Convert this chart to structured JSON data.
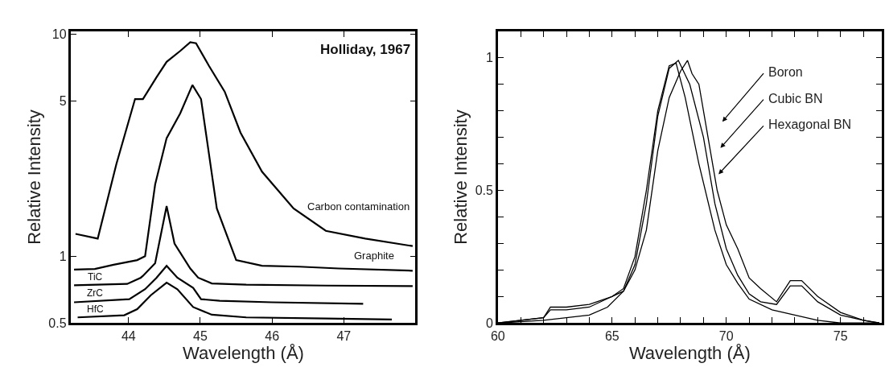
{
  "chart_data": [
    {
      "type": "line",
      "xlabel": "Wavelength (Å)",
      "ylabel": "Relative Intensity",
      "log": true,
      "xlim": [
        43.2,
        48.0
      ],
      "xticks": [
        44,
        45,
        46,
        47
      ],
      "ylim": [
        0.5,
        10.3
      ],
      "yticks": [
        0.5,
        1,
        5,
        10
      ],
      "annotations": [
        "Holliday, 1967",
        "Carbon contamination",
        "Graphite",
        "TiC",
        "ZrC",
        "HfC"
      ],
      "series": [
        {
          "color": "#000000",
          "x": [
            43.26,
            43.57,
            43.83,
            44.09,
            44.2,
            44.39,
            44.53,
            44.72,
            44.86,
            44.94,
            45.12,
            45.34,
            45.56,
            45.86,
            46.3,
            46.75,
            47.3,
            47.96
          ],
          "values": [
            1.26,
            1.2,
            2.6,
            5.1,
            5.1,
            6.4,
            7.5,
            8.4,
            9.2,
            9.1,
            7.2,
            5.5,
            3.6,
            2.4,
            1.64,
            1.3,
            1.2,
            1.11
          ]
        },
        {
          "color": "#000000",
          "x": [
            43.24,
            43.53,
            43.79,
            44.12,
            44.23,
            44.37,
            44.53,
            44.72,
            44.89,
            45.01,
            45.23,
            45.5,
            45.86,
            46.38,
            46.93,
            47.96
          ],
          "values": [
            0.87,
            0.876,
            0.915,
            0.96,
            1.0,
            2.1,
            3.4,
            4.4,
            5.9,
            5.1,
            1.64,
            0.96,
            0.905,
            0.897,
            0.88,
            0.86
          ]
        },
        {
          "color": "#000000",
          "x": [
            43.24,
            43.98,
            44.17,
            44.2,
            44.37,
            44.53,
            44.64,
            44.86,
            44.97,
            45.16,
            45.64,
            46.75,
            47.96
          ],
          "values": [
            0.74,
            0.75,
            0.8,
            0.815,
            0.93,
            1.68,
            1.14,
            0.88,
            0.8,
            0.754,
            0.744,
            0.737,
            0.733
          ]
        },
        {
          "color": "#000000",
          "x": [
            43.24,
            44.01,
            44.23,
            44.39,
            44.53,
            44.68,
            44.9,
            45.01,
            45.27,
            46.0,
            47.27
          ],
          "values": [
            0.62,
            0.64,
            0.71,
            0.8,
            0.905,
            0.8,
            0.72,
            0.64,
            0.63,
            0.62,
            0.61
          ]
        },
        {
          "color": "#000000",
          "x": [
            43.29,
            43.94,
            44.12,
            44.31,
            44.53,
            44.68,
            44.9,
            45.16,
            45.64,
            46.75,
            47.67
          ],
          "values": [
            0.53,
            0.542,
            0.577,
            0.667,
            0.76,
            0.71,
            0.59,
            0.545,
            0.53,
            0.524,
            0.519
          ]
        }
      ]
    },
    {
      "type": "line",
      "xlabel": "Wavelength (Å)",
      "ylabel": "Relative Intensity",
      "xlim": [
        60,
        76.8
      ],
      "xticks": [
        60,
        {
          "value": 61,
          "label": null
        },
        {
          "value": 62,
          "label": null
        },
        {
          "value": 63,
          "label": null
        },
        {
          "value": 64,
          "label": null
        },
        65,
        {
          "value": 66,
          "label": null
        },
        {
          "value": 67,
          "label": null
        },
        {
          "value": 68,
          "label": null
        },
        {
          "value": 69,
          "label": null
        },
        70,
        {
          "value": 71,
          "label": null
        },
        {
          "value": 72,
          "label": null
        },
        {
          "value": 73,
          "label": null
        },
        {
          "value": 74,
          "label": null
        },
        75,
        {
          "value": 76,
          "label": null
        }
      ],
      "ylim": [
        0,
        1.1
      ],
      "annotations": [
        "Boron",
        "Cubic BN",
        "Hexagonal BN"
      ],
      "yticks": [
        0,
        {
          "value": 0.1,
          "label": null
        },
        {
          "value": 0.2,
          "label": null
        },
        {
          "value": 0.3,
          "label": null
        },
        {
          "value": 0.4,
          "label": null
        },
        0.5,
        {
          "value": 0.6,
          "label": null
        },
        {
          "value": 0.7,
          "label": null
        },
        {
          "value": 0.8,
          "label": null
        },
        {
          "value": 0.9,
          "label": null
        },
        1
      ],
      "series": [
        {
          "color": "#000000",
          "x": [
            60,
            61,
            62,
            62.3,
            63,
            64,
            65,
            65.5,
            66,
            66.5,
            67,
            67.5,
            68,
            68.3,
            68.5,
            68.8,
            69.2,
            69.6,
            70,
            70.5,
            71,
            71.5,
            72.2,
            72.8,
            73.3,
            74,
            75,
            76,
            76.7
          ],
          "values": [
            0,
            0.01,
            0.02,
            0.06,
            0.06,
            0.07,
            0.1,
            0.12,
            0.2,
            0.35,
            0.65,
            0.85,
            0.95,
            0.99,
            0.94,
            0.9,
            0.7,
            0.5,
            0.37,
            0.28,
            0.17,
            0.13,
            0.08,
            0.16,
            0.16,
            0.1,
            0.04,
            0.01,
            0
          ]
        },
        {
          "color": "#000000",
          "x": [
            60,
            62,
            63,
            64,
            64.8,
            65.5,
            66,
            66.5,
            67,
            67.5,
            67.9,
            68.4,
            69,
            69.5,
            70,
            70.5,
            71,
            71.5,
            72.2,
            72.8,
            73.3,
            74,
            75,
            76,
            76.7
          ],
          "values": [
            0,
            0.01,
            0.02,
            0.03,
            0.06,
            0.12,
            0.22,
            0.45,
            0.78,
            0.96,
            0.99,
            0.9,
            0.7,
            0.45,
            0.28,
            0.18,
            0.11,
            0.08,
            0.07,
            0.14,
            0.14,
            0.08,
            0.03,
            0.01,
            0
          ]
        },
        {
          "color": "#000000",
          "x": [
            60,
            61,
            62,
            62.3,
            63,
            64,
            65,
            65.5,
            66,
            66.5,
            67,
            67.5,
            67.8,
            68.2,
            68.8,
            69.5,
            70,
            70.5,
            71,
            72,
            73,
            74,
            75,
            76.7
          ],
          "values": [
            0,
            0.01,
            0.02,
            0.05,
            0.05,
            0.06,
            0.1,
            0.13,
            0.25,
            0.5,
            0.8,
            0.97,
            0.98,
            0.85,
            0.6,
            0.35,
            0.22,
            0.15,
            0.09,
            0.05,
            0.03,
            0.01,
            0,
            0
          ]
        }
      ]
    }
  ]
}
